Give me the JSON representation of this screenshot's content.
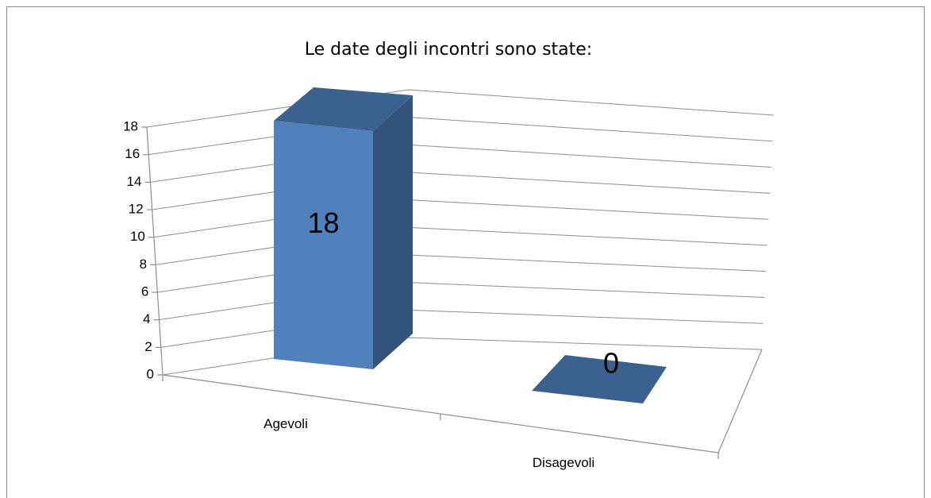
{
  "chart_data": {
    "type": "bar3d",
    "title": "Le date degli incontri sono state:",
    "categories": [
      "Agevoli",
      "Disagevoli"
    ],
    "values": [
      18,
      0
    ],
    "color": "#4f81bd",
    "ylim": [
      0,
      18
    ],
    "yticks": [
      0,
      2,
      4,
      6,
      8,
      10,
      12,
      14,
      16,
      18
    ],
    "grid": true
  }
}
